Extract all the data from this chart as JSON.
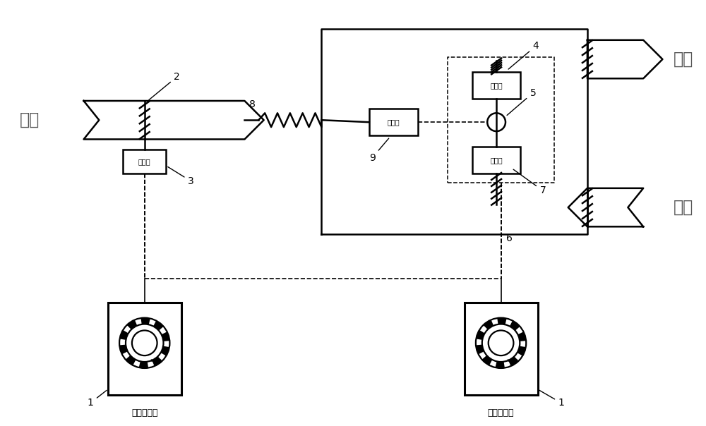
{
  "bg_color": "#ffffff",
  "line_color": "#000000",
  "text_color": "#000000",
  "label_xinfeng": "新风",
  "label_songfeng": "送风",
  "label_huifeng": "回风",
  "label_xinfeng_valve": "新风阀",
  "label_songfeng_valve": "送风阀",
  "label_huifeng_valve": "回风阀",
  "label_rotor_valve": "常通阀",
  "label_positioner": "风阀定位器"
}
